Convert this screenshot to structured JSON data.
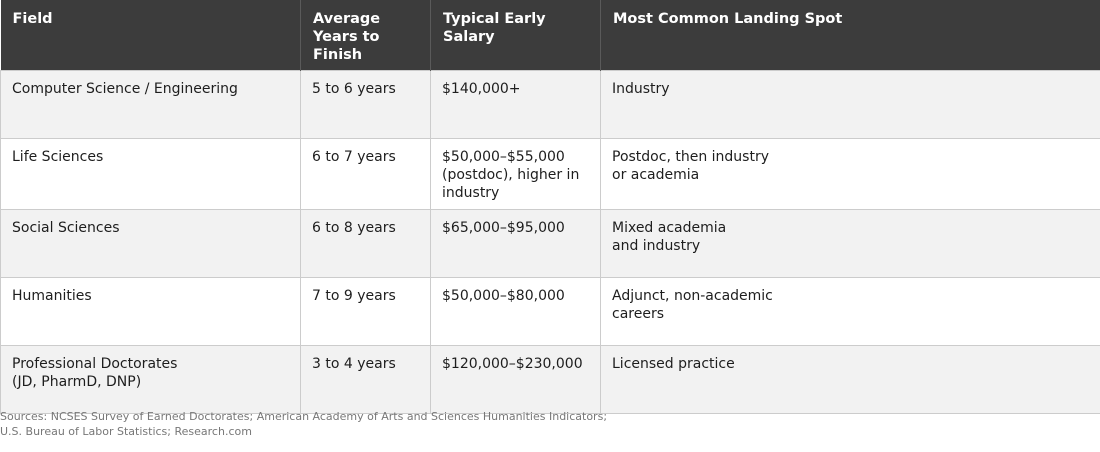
{
  "table": {
    "headers": [
      "Field",
      "Average Years to Finish",
      "Typical Early Salary",
      "Most Common Landing Spot"
    ],
    "rows": [
      [
        "Computer Science / Engineering",
        "5 to 6 years",
        "$140,000+",
        "Industry"
      ],
      [
        "Life Sciences",
        "6 to 7 years",
        "$50,000–$55,000 (postdoc), higher in industry",
        "Postdoc, then industry or academia"
      ],
      [
        "Social Sciences",
        "6 to 8 years",
        "$65,000–$95,000",
        "Mixed academia and industry"
      ],
      [
        "Humanities",
        "7 to 9 years",
        "$50,000–$80,000",
        "Adjunct, non-academic careers"
      ],
      [
        "Professional Doctorates (JD, PharmD, DNP)",
        "3 to 4 years",
        "$120,000–$230,000",
        "Licensed practice"
      ]
    ]
  },
  "sources": {
    "line1": "Sources: NCSES Survey of Earned Doctorates; American Academy of Arts and Sciences Humanities Indicators;",
    "line2": "U.S. Bureau of Labor Statistics; Research.com"
  }
}
